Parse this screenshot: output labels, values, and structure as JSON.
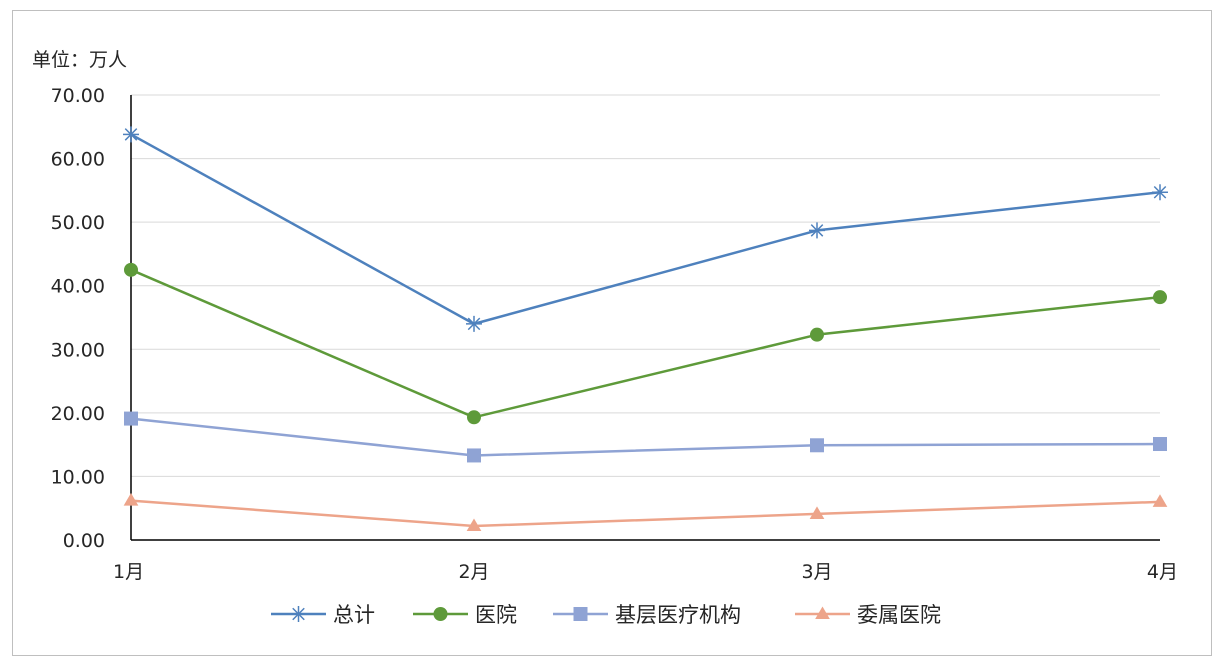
{
  "chart_data": {
    "type": "line",
    "unit_label": "单位：万人",
    "categories": [
      "1月",
      "2月",
      "3月",
      "4月"
    ],
    "ylim": [
      0,
      70
    ],
    "yticks": [
      0,
      10,
      20,
      30,
      40,
      50,
      60,
      70
    ],
    "ytick_labels": [
      "0.00",
      "10.00",
      "20.00",
      "30.00",
      "40.00",
      "50.00",
      "60.00",
      "70.00"
    ],
    "grid": true,
    "legend_position": "bottom",
    "series": [
      {
        "name": "总计",
        "values": [
          63.8,
          34.0,
          48.7,
          54.7
        ],
        "color": "#4e81bd",
        "marker": "star"
      },
      {
        "name": "医院",
        "values": [
          42.5,
          19.3,
          32.3,
          38.2
        ],
        "color": "#5e9a3a",
        "marker": "circle"
      },
      {
        "name": "基层医疗机构",
        "values": [
          19.1,
          13.3,
          14.9,
          15.1
        ],
        "color": "#8fa3d4",
        "marker": "square"
      },
      {
        "name": "委属医院",
        "values": [
          6.2,
          2.2,
          4.1,
          6.0
        ],
        "color": "#eda48a",
        "marker": "triangle"
      }
    ]
  }
}
